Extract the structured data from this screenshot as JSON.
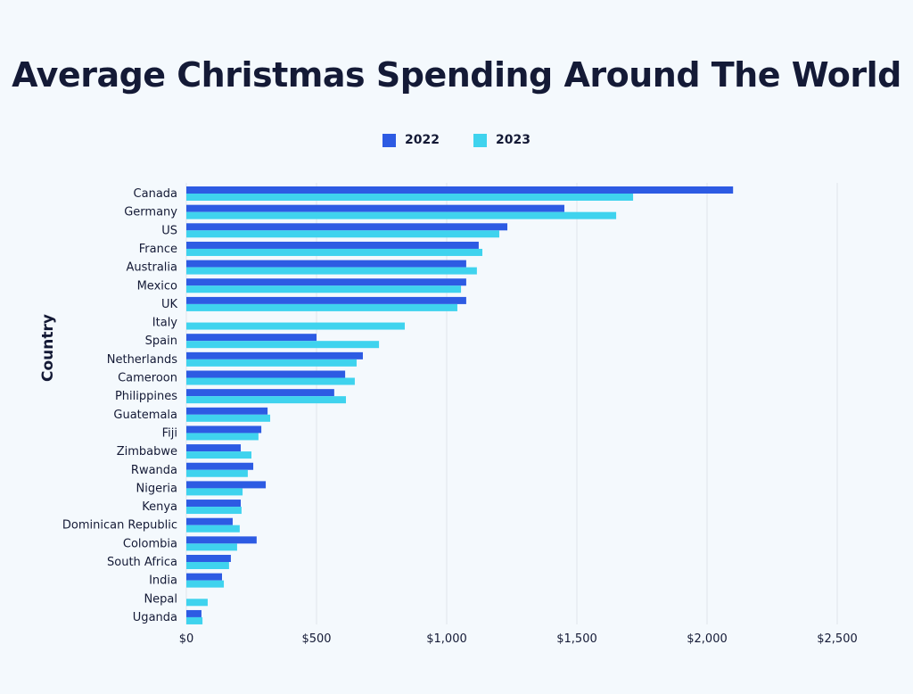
{
  "chart_data": {
    "type": "bar",
    "orientation": "horizontal",
    "title": "Average Christmas Spending Around The World",
    "xlabel": "",
    "ylabel": "Country",
    "xlim": [
      0,
      2500
    ],
    "x_ticks": [
      0,
      500,
      1000,
      1500,
      2000,
      2500
    ],
    "x_tick_labels": [
      "$0",
      "$500",
      "$1,000",
      "$1,500",
      "$2,000",
      "$2,500"
    ],
    "grid": "vertical",
    "legend_position": "top",
    "categories": [
      "Canada",
      "Germany",
      "US",
      "France",
      "Australia",
      "Mexico",
      "UK",
      "Italy",
      "Spain",
      "Netherlands",
      "Cameroon",
      "Philippines",
      "Guatemala",
      "Fiji",
      "Zimbabwe",
      "Rwanda",
      "Nigeria",
      "Kenya",
      "Dominican Republic",
      "Colombia",
      "South Africa",
      "India",
      "Nepal",
      "Uganda"
    ],
    "series": [
      {
        "name": "2022",
        "color": "#2d5be3",
        "values": [
          2100,
          1452,
          1233,
          1123,
          1075,
          1075,
          1075,
          null,
          500,
          678,
          610,
          568,
          312,
          288,
          209,
          257,
          305,
          209,
          178,
          270,
          171,
          137,
          null,
          58
        ]
      },
      {
        "name": "2023",
        "color": "#3fd3ee",
        "values": [
          1716,
          1651,
          1202,
          1137,
          1116,
          1055,
          1041,
          839,
          740,
          654,
          647,
          613,
          322,
          277,
          250,
          236,
          216,
          212,
          205,
          195,
          164,
          144,
          82,
          62
        ]
      }
    ]
  }
}
